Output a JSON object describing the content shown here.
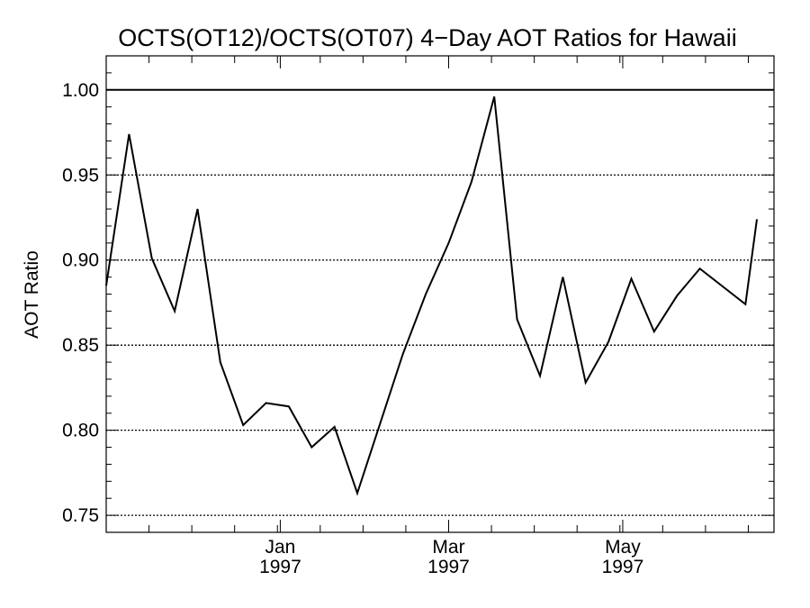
{
  "chart_data": {
    "type": "line",
    "title": "OCTS(OT12)/OCTS(OT07) 4−Day AOT Ratios for Hawaii",
    "xlabel": "",
    "ylabel": "AOT Ratio",
    "x_axis": {
      "type": "date",
      "range": [
        "1996-11-01",
        "1997-06-23"
      ],
      "tick_labels": [
        {
          "date": "1997-01-01",
          "month": "Jan",
          "year": "1997"
        },
        {
          "date": "1997-03-01",
          "month": "Mar",
          "year": "1997"
        },
        {
          "date": "1997-05-01",
          "month": "May",
          "year": "1997"
        }
      ],
      "minor_tick_interval_days": 15
    },
    "y_axis": {
      "range": [
        0.74,
        1.02
      ],
      "tick_values": [
        0.75,
        0.8,
        0.85,
        0.9,
        0.95,
        1.0
      ],
      "tick_labels": [
        "0.75",
        "0.80",
        "0.85",
        "0.90",
        "0.95",
        "1.00"
      ],
      "minor_tick_interval": 0.01
    },
    "grid": "horizontal dotted at major y ticks",
    "reference_line": 1.0,
    "series": [
      {
        "x": [
          "1996-11-01",
          "1996-11-09",
          "1996-11-17",
          "1996-11-25",
          "1996-12-03",
          "1996-12-11",
          "1996-12-19",
          "1996-12-27",
          "1997-01-04",
          "1997-01-12",
          "1997-01-20",
          "1997-01-28",
          "1997-02-05",
          "1997-02-13",
          "1997-02-21",
          "1997-03-01",
          "1997-03-09",
          "1997-03-17",
          "1997-03-25",
          "1997-04-02",
          "1997-04-10",
          "1997-04-18",
          "1997-04-26",
          "1997-05-04",
          "1997-05-12",
          "1997-05-20",
          "1997-05-28",
          "1997-06-13",
          "1997-06-17"
        ],
        "y": [
          0.885,
          0.974,
          0.901,
          0.87,
          0.93,
          0.84,
          0.803,
          0.816,
          0.814,
          0.79,
          0.802,
          0.763,
          0.804,
          0.845,
          0.88,
          0.91,
          0.946,
          0.996,
          0.865,
          0.832,
          0.89,
          0.828,
          0.852,
          0.889,
          0.858,
          0.879,
          0.895,
          0.874,
          0.924
        ]
      }
    ]
  }
}
